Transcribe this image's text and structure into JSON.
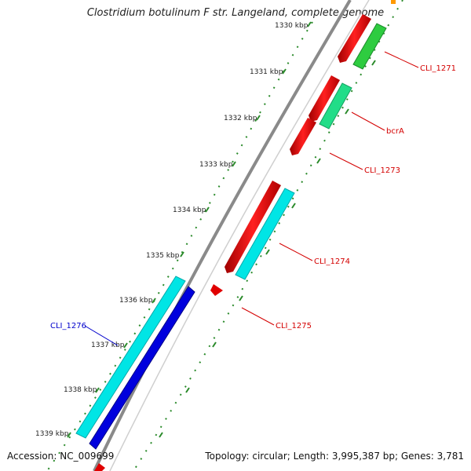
{
  "title": "Clostridium botulinum F str. Langeland, complete genome",
  "accession_text": "Accession: NC_009699",
  "summary_text": "Topology: circular; Length: 3,995,387 bp; Genes: 3,781",
  "ticks": [
    "1330 kbp",
    "1331 kbp",
    "1332 kbp",
    "1333 kbp",
    "1334 kbp",
    "1335 kbp",
    "1336 kbp",
    "1337 kbp",
    "1338 kbp",
    "1339 kbp"
  ],
  "genes": [
    {
      "label": "CLI_1271",
      "color": "#d40000"
    },
    {
      "label": "bcrA",
      "color": "#d40000"
    },
    {
      "label": "CLI_1273",
      "color": "#d40000"
    },
    {
      "label": "CLI_1274",
      "color": "#d40000"
    },
    {
      "label": "CLI_1275",
      "color": "#d40000"
    },
    {
      "label": "CLI_1276",
      "color": "#0000cc"
    }
  ],
  "colors": {
    "cds_forward": "#e00000",
    "orf_cyan": "#00e5e5",
    "orf_blue": "#0000dd",
    "orf_green": "#2ecc40",
    "orf_mint": "#22dd88",
    "backbone": "#8a8a8a",
    "tick_dots": "#2a8a2a"
  }
}
